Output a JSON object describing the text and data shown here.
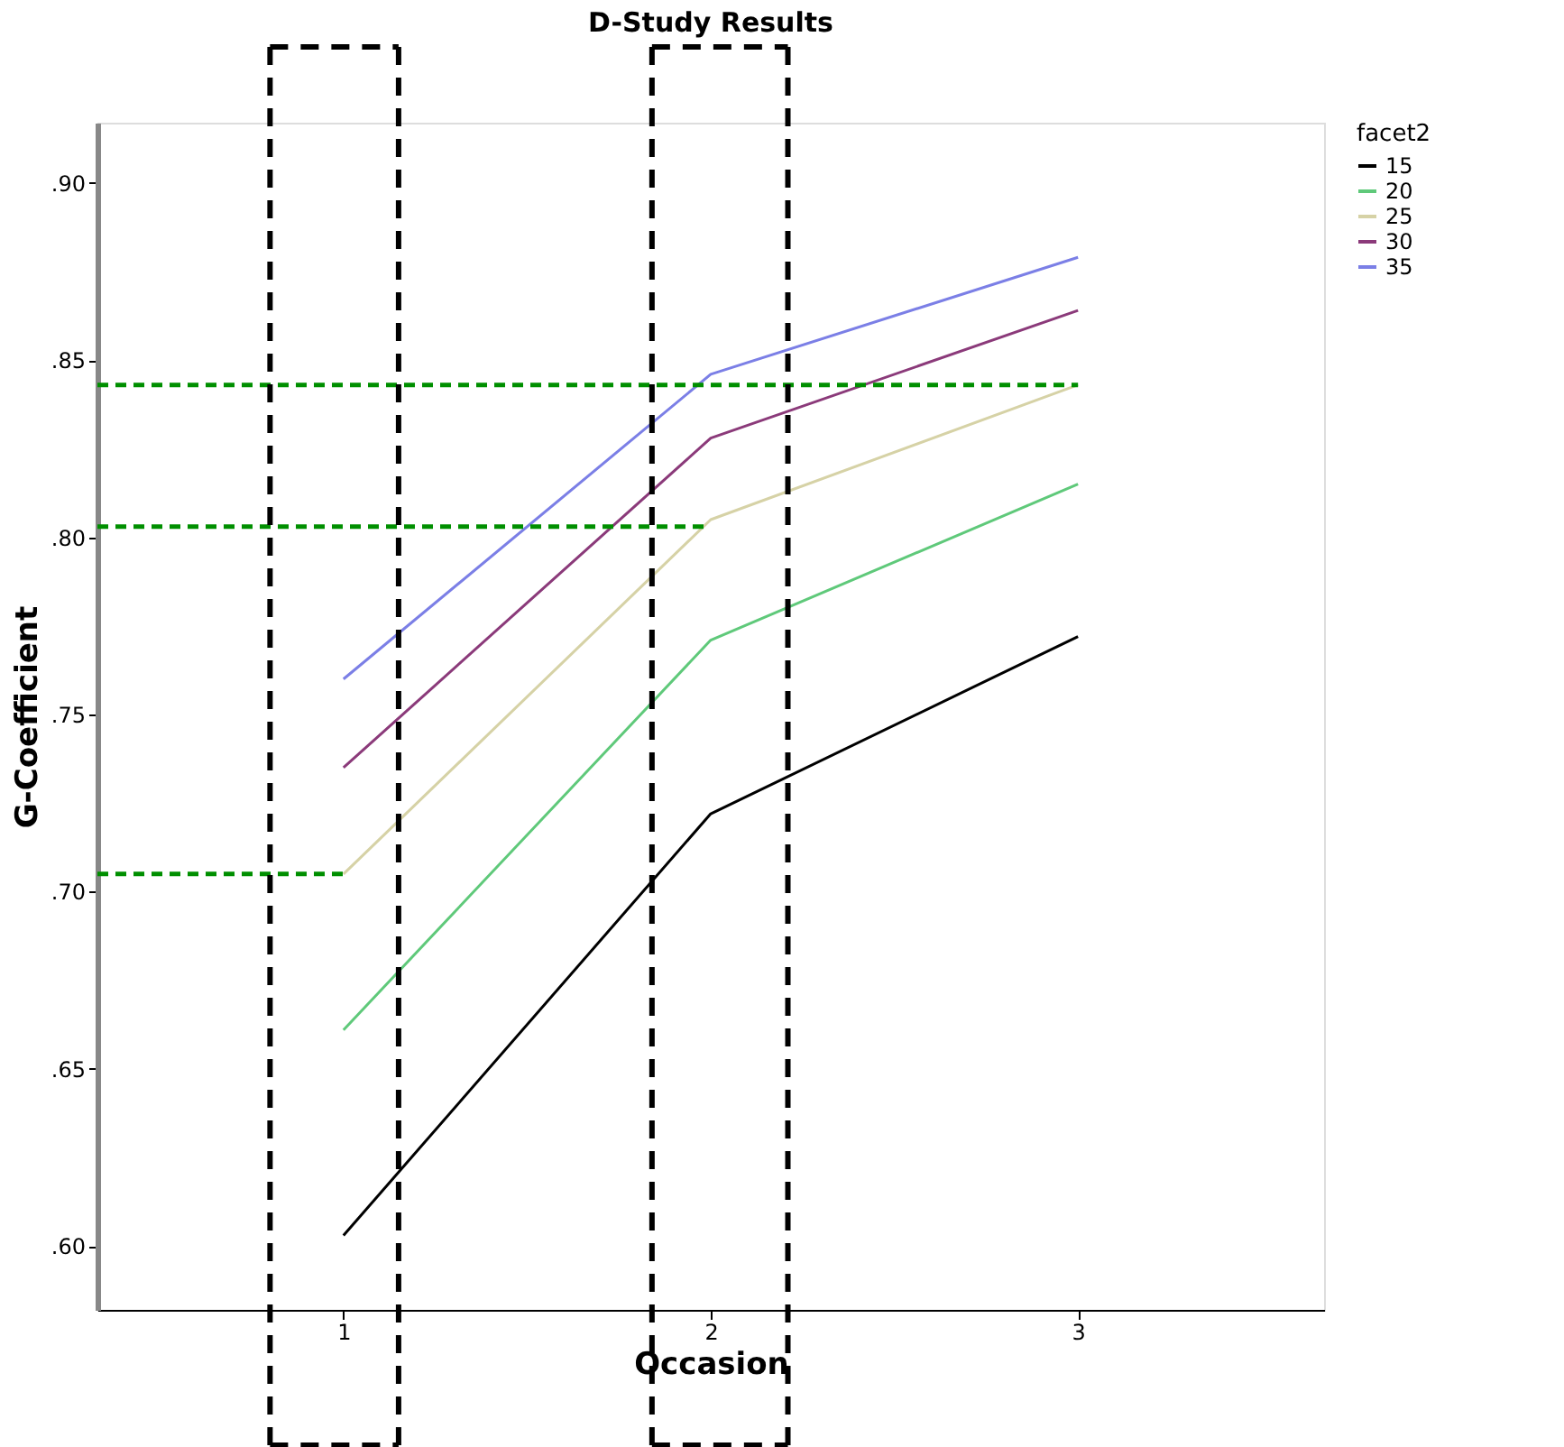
{
  "chart_data": {
    "type": "line",
    "title": "D-Study Results",
    "xlabel": "Occasion",
    "ylabel": "G-Coefficient",
    "legend_title": "facet2",
    "legend": "top right",
    "grid": false,
    "marker": "none",
    "line_style": "solid",
    "x": [
      1,
      2,
      3
    ],
    "xlim": [
      0.33,
      3.67
    ],
    "xticks": [
      1,
      2,
      3
    ],
    "ylim": [
      0.582,
      0.917
    ],
    "yticks": [
      {
        "value": 0.6,
        "label": ".60"
      },
      {
        "value": 0.65,
        "label": ".65"
      },
      {
        "value": 0.7,
        "label": ".70"
      },
      {
        "value": 0.75,
        "label": ".75"
      },
      {
        "value": 0.8,
        "label": ".80"
      },
      {
        "value": 0.85,
        "label": ".85"
      },
      {
        "value": 0.9,
        "label": ".90"
      }
    ],
    "series": [
      {
        "name": "15",
        "color": "#000000",
        "values": [
          0.603,
          0.722,
          0.772
        ]
      },
      {
        "name": "20",
        "color": "#5fc97a",
        "values": [
          0.661,
          0.771,
          0.815
        ]
      },
      {
        "name": "25",
        "color": "#d6d2a6",
        "values": [
          0.705,
          0.805,
          0.843
        ]
      },
      {
        "name": "30",
        "color": "#8b3a7a",
        "values": [
          0.735,
          0.828,
          0.864
        ]
      },
      {
        "name": "35",
        "color": "#7b7fe6",
        "values": [
          0.76,
          0.846,
          0.879
        ]
      }
    ],
    "ref_lines": [
      {
        "axis": "y",
        "value": 0.843,
        "color": "#008f00",
        "line_style": "dashed"
      },
      {
        "axis": "y",
        "value": 0.803,
        "color": "#008f00",
        "line_style": "dashed"
      },
      {
        "axis": "y",
        "value": 0.705,
        "color": "#008f00",
        "line_style": "dashed"
      }
    ]
  }
}
